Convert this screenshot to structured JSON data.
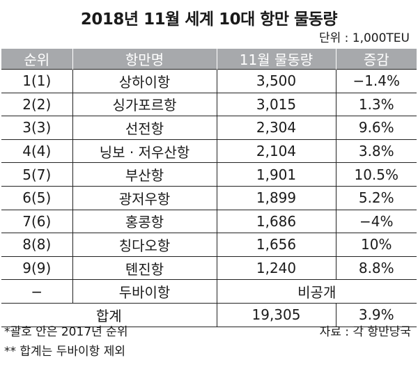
{
  "title": "2018년 11월 세계 10대 항만 물동량",
  "unit": "단위 : 1,000TEU",
  "headers": [
    "순위",
    "항만명",
    "11월 물동량",
    "증감"
  ],
  "rows": [
    [
      "1(1)",
      "상하이항",
      "3,500",
      "−1.4%"
    ],
    [
      "2(2)",
      "싱가포르항",
      "3,015",
      "1.3%"
    ],
    [
      "3(3)",
      "선전항",
      "2,304",
      "9.6%"
    ],
    [
      "4(4)",
      "닝보 · 저우산항",
      "2,104",
      "3.8%"
    ],
    [
      "5(7)",
      "부산항",
      "1,901",
      "10.5%"
    ],
    [
      "6(5)",
      "광저우항",
      "1,899",
      "5.2%"
    ],
    [
      "7(6)",
      "홍콩항",
      "1,686",
      "−4%"
    ],
    [
      "8(8)",
      "칭다오항",
      "1,656",
      "10%"
    ],
    [
      "9(9)",
      "톈진항",
      "1,240",
      "8.8%"
    ]
  ],
  "dubai_row": {
    "rank": "−",
    "port": "두바이항",
    "note": "비공개"
  },
  "total_row": {
    "label": "합계",
    "volume": "19,305",
    "change": "3.9%"
  },
  "footnotes": {
    "note1": "*괄호 안은 2017년 순위",
    "note2": "** 합계는 두바이항 제외",
    "source": "자료 : 각 항만당국"
  }
}
